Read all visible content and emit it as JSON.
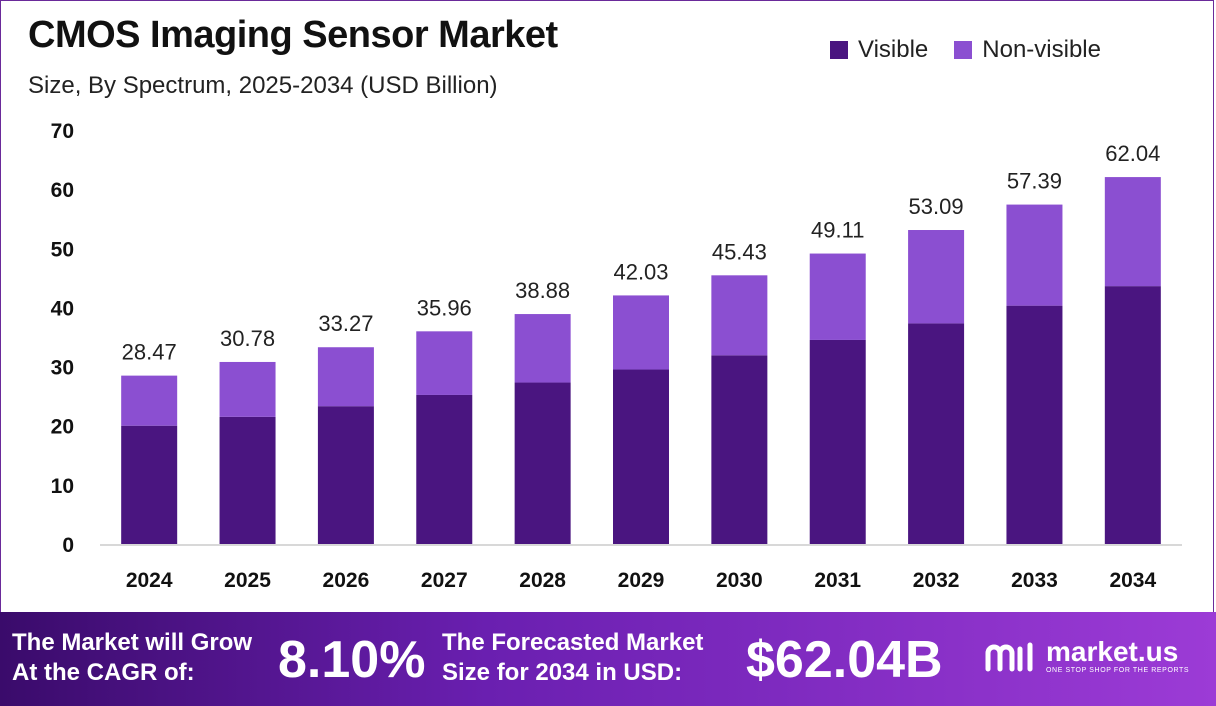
{
  "header": {
    "title": "CMOS Imaging Sensor Market",
    "subtitle": "Size, By Spectrum, 2025-2034 (USD Billion)"
  },
  "legend": [
    {
      "label": "Visible",
      "color": "#4a1580"
    },
    {
      "label": "Non-visible",
      "color": "#8b4fd1"
    }
  ],
  "chart_data": {
    "type": "bar",
    "stacked": true,
    "categories": [
      "2024",
      "2025",
      "2026",
      "2027",
      "2028",
      "2029",
      "2030",
      "2031",
      "2032",
      "2033",
      "2034"
    ],
    "series": [
      {
        "name": "Visible",
        "color": "#4a1580",
        "values": [
          20.0,
          21.5,
          23.3,
          25.2,
          27.3,
          29.5,
          31.9,
          34.5,
          37.3,
          40.3,
          43.6
        ]
      },
      {
        "name": "Non-visible",
        "color": "#8b4fd1",
        "values": [
          8.47,
          9.28,
          9.97,
          10.76,
          11.58,
          12.53,
          13.53,
          14.61,
          15.79,
          17.09,
          18.44
        ]
      }
    ],
    "totals": [
      28.47,
      30.78,
      33.27,
      35.96,
      38.88,
      42.03,
      45.43,
      49.11,
      53.09,
      57.39,
      62.04
    ],
    "total_labels": [
      "28.47",
      "30.78",
      "33.27",
      "35.96",
      "38.88",
      "42.03",
      "45.43",
      "49.11",
      "53.09",
      "57.39",
      "62.04"
    ],
    "ylim": [
      0,
      70
    ],
    "yticks": [
      0,
      10,
      20,
      30,
      40,
      50,
      60,
      70
    ],
    "grid": false,
    "legend_position": "top-right"
  },
  "footer": {
    "cagr_line1": "The Market will Grow",
    "cagr_line2": "At the CAGR of:",
    "cagr_value": "8.10%",
    "forecast_line1": "The Forecasted Market",
    "forecast_line2": "Size for 2034 in USD:",
    "forecast_value": "$62.04B",
    "brand_name": "market.us",
    "brand_tagline": "ONE STOP SHOP FOR THE REPORTS"
  }
}
